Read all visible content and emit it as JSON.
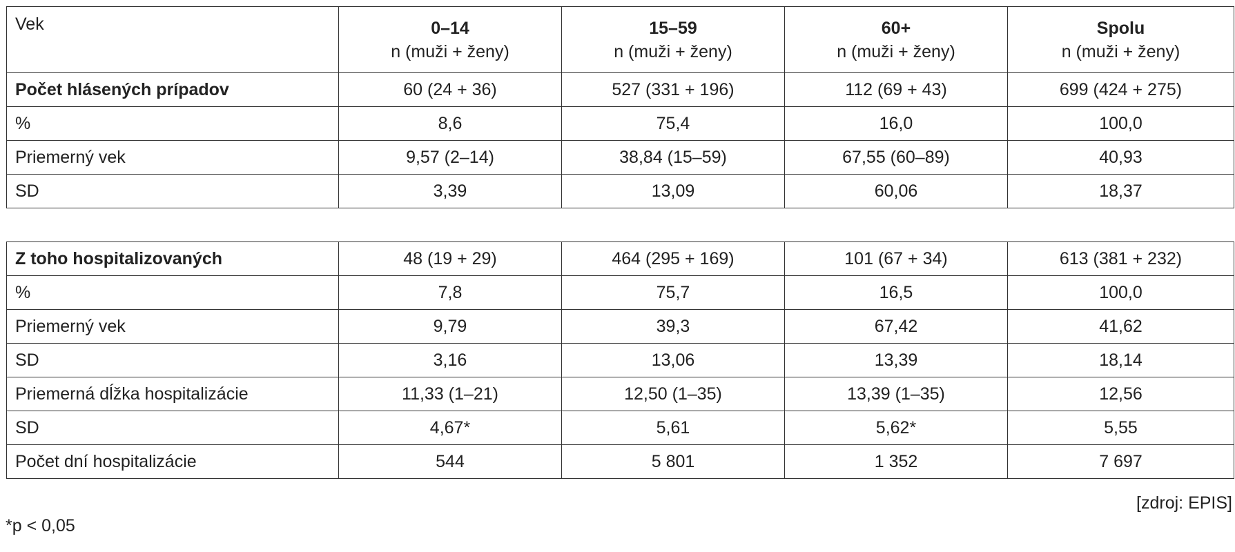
{
  "table": {
    "header": [
      {
        "title": "Vek"
      },
      {
        "title": "0–14",
        "subtitle": "n (muži + ženy)"
      },
      {
        "title": "15–59",
        "subtitle": "n (muži + ženy)"
      },
      {
        "title": "60+",
        "subtitle": "n (muži + ženy)"
      },
      {
        "title": "Spolu",
        "subtitle": "n (muži + ženy)"
      }
    ],
    "sections": [
      {
        "rows": [
          [
            "Počet hlásených prípadov",
            "60 (24 + 36)",
            "527 (331 + 196)",
            "112 (69 + 43)",
            "699 (424 + 275)"
          ],
          [
            "%",
            "8,6",
            "75,4",
            "16,0",
            "100,0"
          ],
          [
            "Priemerný vek",
            "9,57 (2–14)",
            "38,84 (15–59)",
            "67,55 (60–89)",
            "40,93"
          ],
          [
            "SD",
            "3,39",
            "13,09",
            "60,06",
            "18,37"
          ]
        ]
      },
      {
        "rows": [
          [
            "Z toho hospitalizovaných",
            "48 (19 + 29)",
            "464 (295 + 169)",
            "101 (67 + 34)",
            "613 (381 + 232)"
          ],
          [
            "%",
            "7,8",
            "75,7",
            "16,5",
            "100,0"
          ],
          [
            "Priemerný vek",
            "9,79",
            "39,3",
            "67,42",
            "41,62"
          ],
          [
            "SD",
            "3,16",
            "13,06",
            "13,39",
            "18,14"
          ],
          [
            "Priemerná dĺžka hospitalizácie",
            "11,33 (1–21)",
            "12,50 (1–35)",
            "13,39 (1–35)",
            "12,56"
          ],
          [
            "SD",
            "4,67*",
            "5,61",
            "5,62*",
            "5,55"
          ],
          [
            "Počet dní hospitalizácie",
            "544",
            "5 801",
            "1 352",
            "7 697"
          ]
        ]
      }
    ]
  },
  "source": "[zdroj: EPIS]",
  "footnote": "*p < 0,05"
}
